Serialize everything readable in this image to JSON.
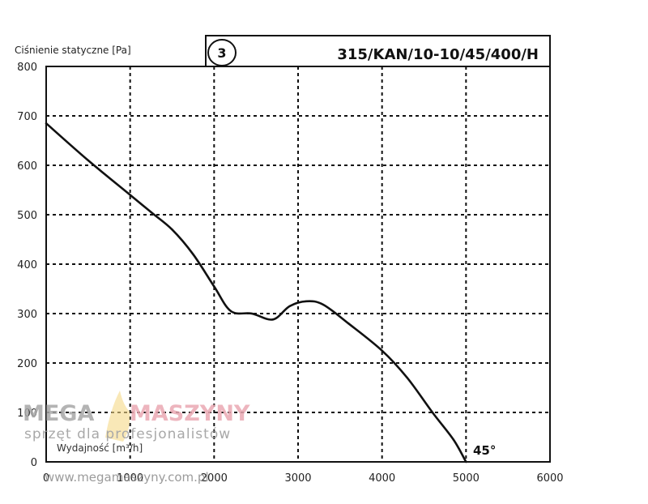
{
  "chart_data": {
    "type": "line",
    "ylabel": "Ciśnienie statyczne [Pa]",
    "xlabel": "Wydajność [m³/h]",
    "model": "315/KAN/10-10/45/400/H",
    "curve_id": "3",
    "annotation": "45°",
    "xlim": [
      0,
      6000
    ],
    "ylim": [
      0,
      800
    ],
    "x_ticks": [
      "0",
      "1000",
      "2000",
      "3000",
      "4000",
      "5000",
      "6000"
    ],
    "y_ticks": [
      "0",
      "100",
      "200",
      "300",
      "400",
      "500",
      "600",
      "700",
      "800"
    ],
    "grid": true,
    "series": [
      {
        "x": [
          0,
          500,
          1000,
          1250,
          1500,
          1750,
          2000,
          2200,
          2450,
          2700,
          2900,
          3100,
          3300,
          3600,
          4000,
          4300,
          4600,
          4850,
          5000
        ],
        "y": [
          685,
          610,
          540,
          505,
          470,
          420,
          355,
          305,
          300,
          288,
          315,
          325,
          318,
          280,
          225,
          170,
          100,
          45,
          0
        ]
      }
    ]
  },
  "watermark": {
    "brand_left": "MEGA",
    "brand_right": "MASZYNY",
    "tagline": "sprzęt dla profesjonalistów",
    "url": "www.megamaszyny.com.pl"
  }
}
